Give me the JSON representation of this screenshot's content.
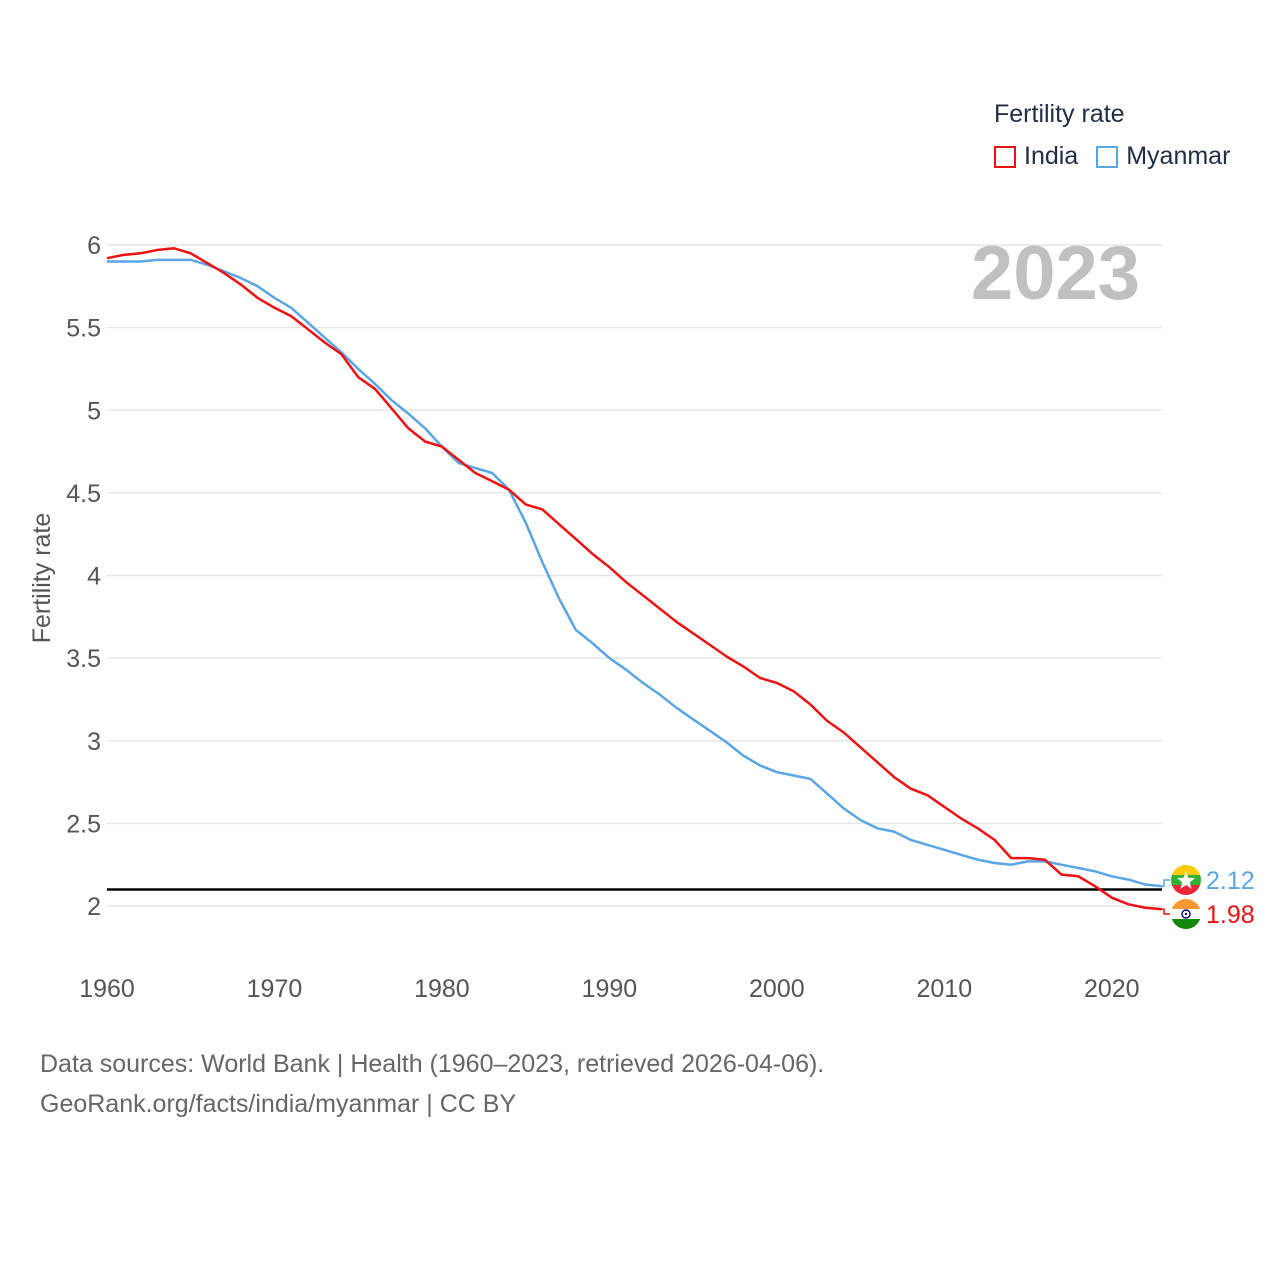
{
  "colors": {
    "india": "#ee1111",
    "myanmar": "#5aa5e6",
    "grid": "#e6e6e6",
    "tick": "#555555",
    "year_label": "#c0c0c0",
    "reference": "#000000"
  },
  "legend": {
    "title": "Fertility rate",
    "items": [
      {
        "name": "India",
        "color": "#ee1111"
      },
      {
        "name": "Myanmar",
        "color": "#5aa5e6"
      }
    ]
  },
  "footer": {
    "line1": "Data sources: World Bank | Health (1960–2023, retrieved 2026-04-06).",
    "line2": "GeoRank.org/facts/india/myanmar | CC BY"
  },
  "chart_data": {
    "type": "line",
    "title": "Fertility rate",
    "year_label": "2023",
    "xlabel": "",
    "ylabel": "Fertility rate",
    "xlim": [
      1960,
      2023
    ],
    "ylim": [
      1.6,
      6.0
    ],
    "x_ticks": [
      1960,
      1970,
      1980,
      1990,
      2000,
      2010,
      2020
    ],
    "y_ticks": [
      2,
      2.5,
      3,
      3.5,
      4,
      4.5,
      5,
      5.5,
      6
    ],
    "y_tick_labels": [
      "2",
      "2.5",
      "3",
      "3.5",
      "4",
      "4.5",
      "5",
      "5.5",
      "6"
    ],
    "reference_line": 2.1,
    "legend_position": "top-right",
    "x": [
      1960,
      1961,
      1962,
      1963,
      1964,
      1965,
      1966,
      1967,
      1968,
      1969,
      1970,
      1971,
      1972,
      1973,
      1974,
      1975,
      1976,
      1977,
      1978,
      1979,
      1980,
      1981,
      1982,
      1983,
      1984,
      1985,
      1986,
      1987,
      1988,
      1989,
      1990,
      1991,
      1992,
      1993,
      1994,
      1995,
      1996,
      1997,
      1998,
      1999,
      2000,
      2001,
      2002,
      2003,
      2004,
      2005,
      2006,
      2007,
      2008,
      2009,
      2010,
      2011,
      2012,
      2013,
      2014,
      2015,
      2016,
      2017,
      2018,
      2019,
      2020,
      2021,
      2022,
      2023
    ],
    "series": [
      {
        "name": "India",
        "color": "#ee1111",
        "end_label": "1.98",
        "values": [
          5.92,
          5.94,
          5.95,
          5.97,
          5.98,
          5.95,
          5.89,
          5.83,
          5.76,
          5.68,
          5.62,
          5.57,
          5.49,
          5.41,
          5.34,
          5.2,
          5.13,
          5.01,
          4.89,
          4.81,
          4.78,
          4.7,
          4.62,
          4.57,
          4.52,
          4.43,
          4.4,
          4.31,
          4.22,
          4.13,
          4.05,
          3.96,
          3.88,
          3.8,
          3.72,
          3.65,
          3.58,
          3.51,
          3.45,
          3.38,
          3.35,
          3.3,
          3.22,
          3.12,
          3.05,
          2.96,
          2.87,
          2.78,
          2.71,
          2.67,
          2.6,
          2.53,
          2.47,
          2.4,
          2.29,
          2.29,
          2.28,
          2.19,
          2.18,
          2.12,
          2.05,
          2.01,
          1.99,
          1.98
        ]
      },
      {
        "name": "Myanmar",
        "color": "#5aa5e6",
        "end_label": "2.12",
        "values": [
          5.9,
          5.9,
          5.9,
          5.91,
          5.91,
          5.91,
          5.88,
          5.84,
          5.8,
          5.75,
          5.68,
          5.62,
          5.53,
          5.44,
          5.35,
          5.25,
          5.16,
          5.06,
          4.98,
          4.89,
          4.78,
          4.68,
          4.65,
          4.62,
          4.52,
          4.32,
          4.08,
          3.86,
          3.67,
          3.59,
          3.5,
          3.43,
          3.35,
          3.28,
          3.2,
          3.13,
          3.06,
          2.99,
          2.91,
          2.85,
          2.81,
          2.79,
          2.77,
          2.68,
          2.59,
          2.52,
          2.47,
          2.45,
          2.4,
          2.37,
          2.34,
          2.31,
          2.28,
          2.26,
          2.25,
          2.27,
          2.27,
          2.25,
          2.23,
          2.21,
          2.18,
          2.16,
          2.13,
          2.12
        ]
      }
    ]
  }
}
